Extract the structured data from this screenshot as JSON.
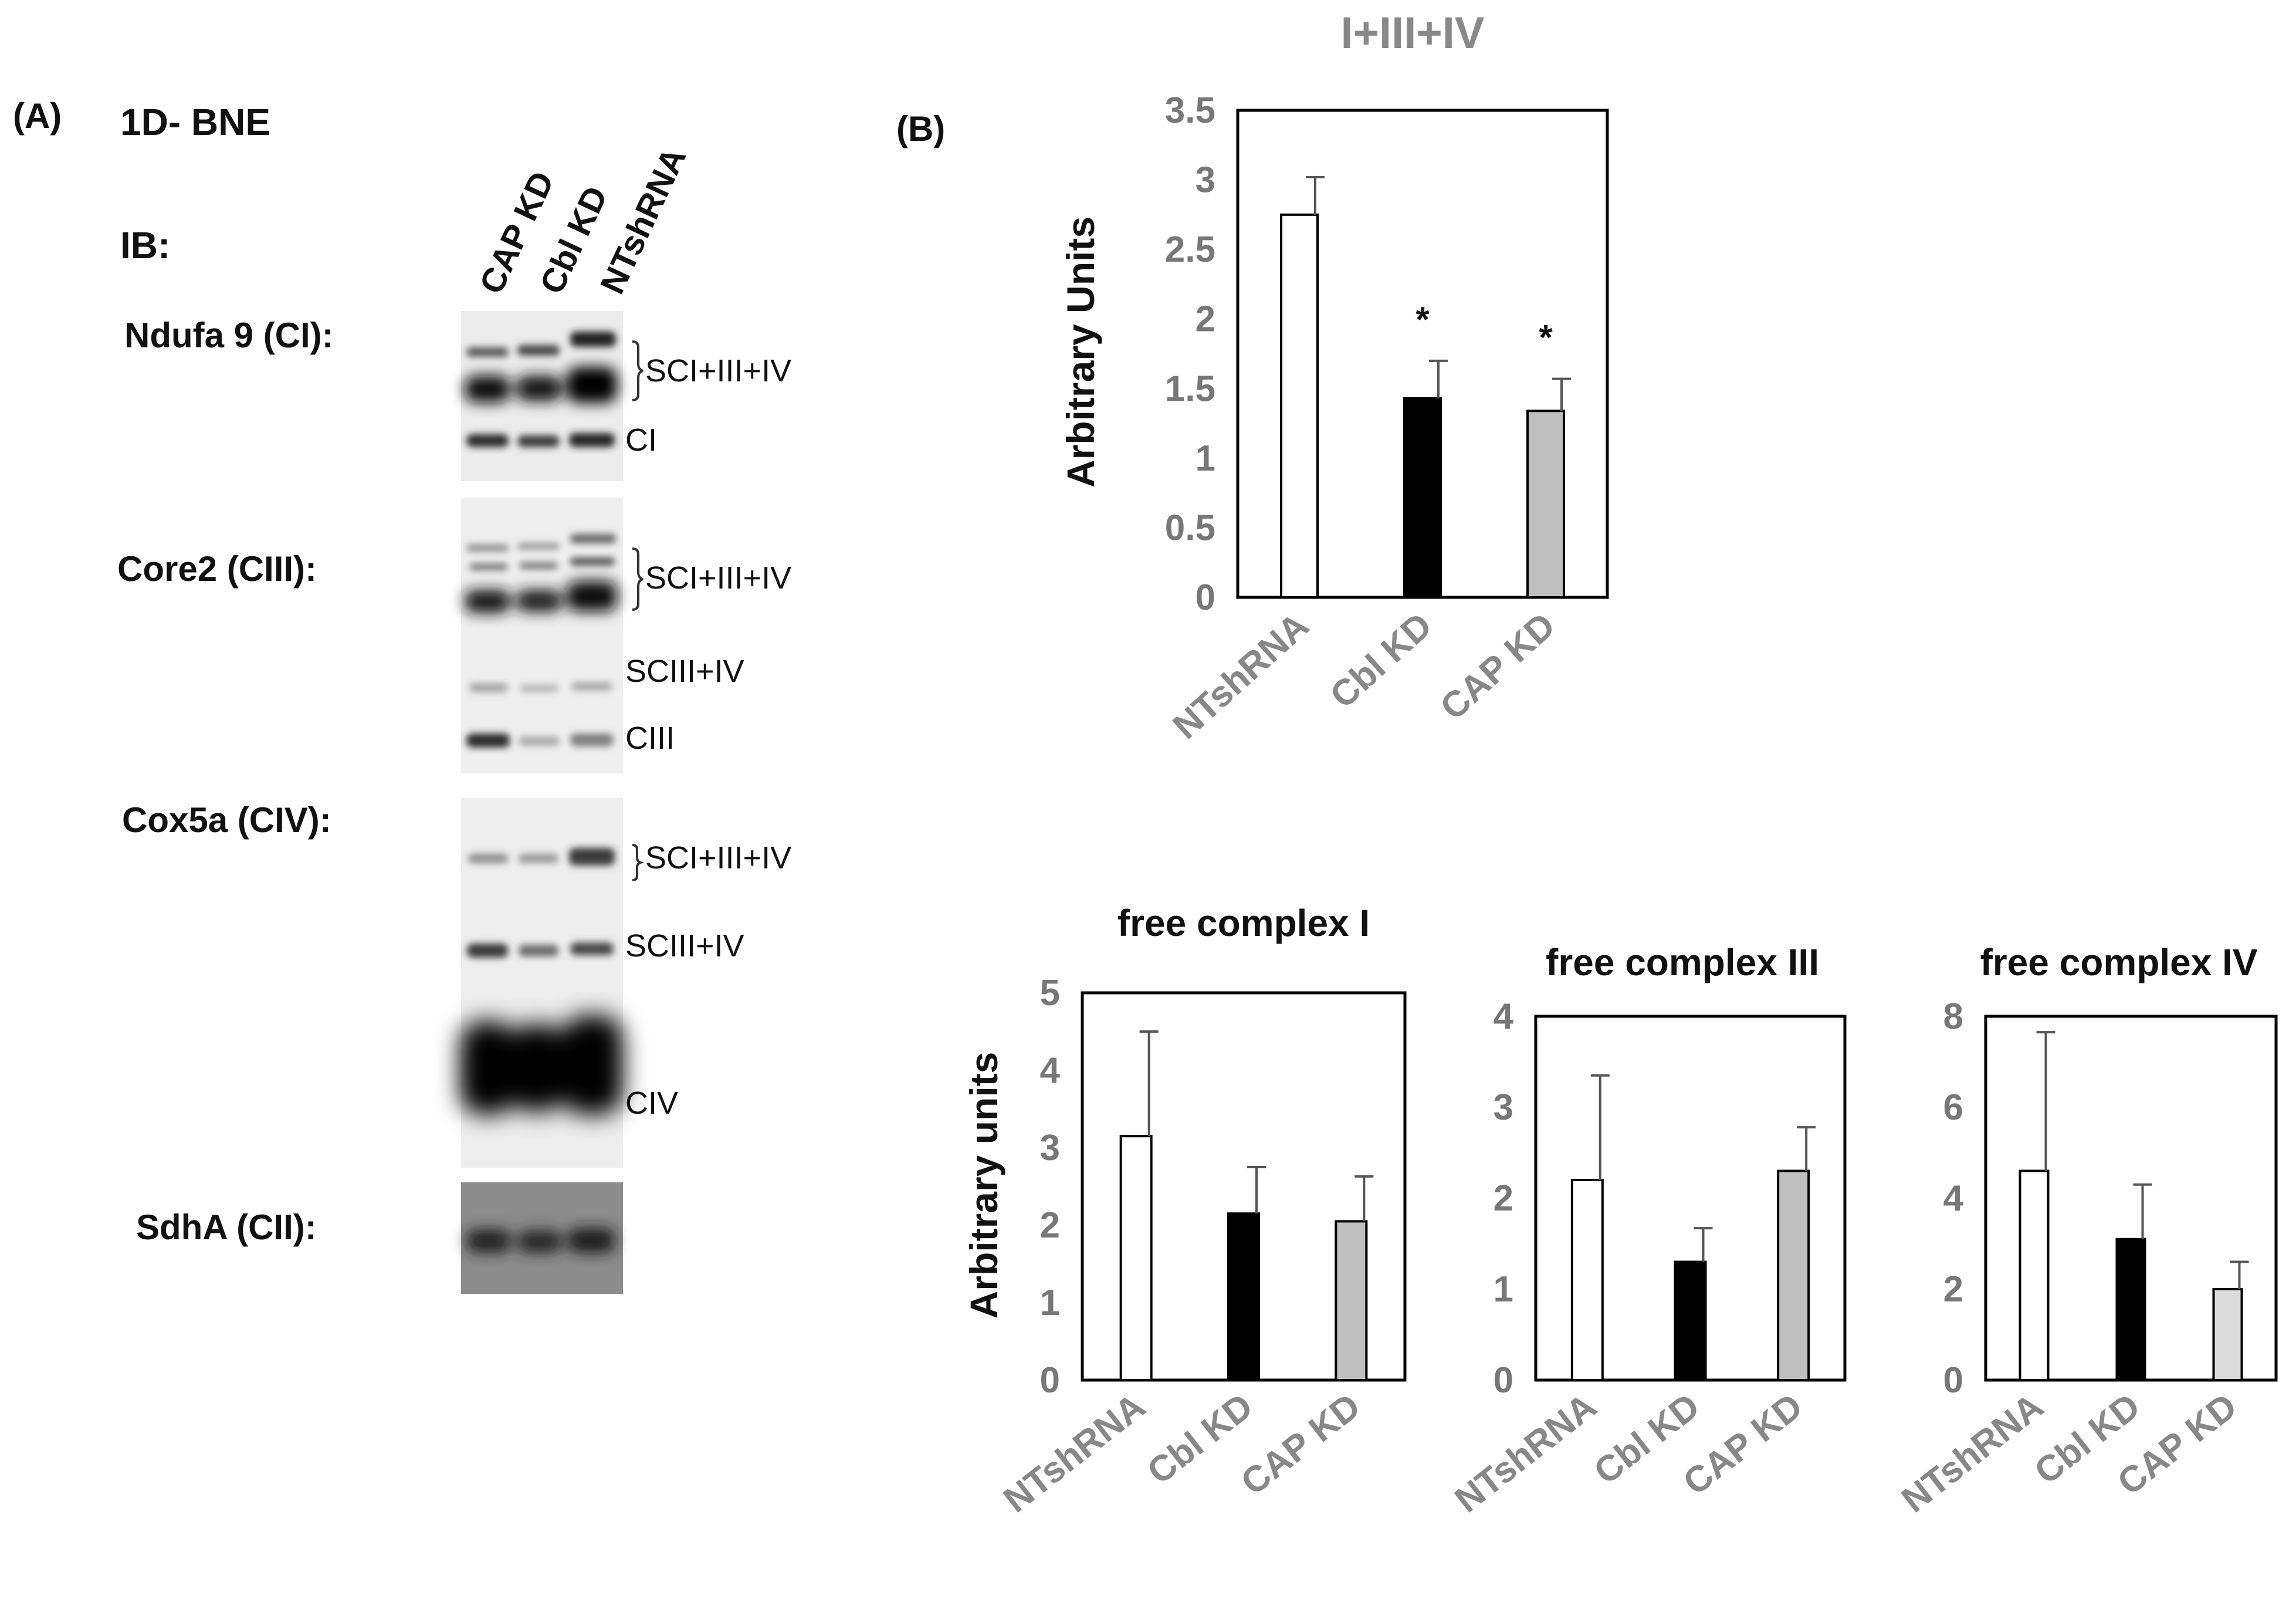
{
  "panel_a": {
    "label": "(A)",
    "method": "1D- BNE",
    "ib_label": "IB:",
    "lanes": [
      "CAP KD",
      "Cbl KD",
      "NTshRNA"
    ],
    "blots": [
      {
        "antibody": "Ndufa 9 (CI):",
        "bands": [
          "SCI+III+IV",
          "CI"
        ]
      },
      {
        "antibody": "Core2 (CIII):",
        "bands": [
          "SCI+III+IV",
          "SCIII+IV",
          "CIII"
        ]
      },
      {
        "antibody": "Cox5a (CIV):",
        "bands": [
          "SCI+III+IV",
          "SCIII+IV",
          "CIV"
        ]
      },
      {
        "antibody": "SdhA (CII):",
        "bands": []
      }
    ]
  },
  "panel_b": {
    "label": "(B)"
  },
  "colors": {
    "NTshRNA": "#ffffff",
    "Cbl KD": "#000000",
    "CAP KD": "#bfbfbf",
    "CAP KD (IV)": "#dcdcdc"
  },
  "chart_data": [
    {
      "type": "bar",
      "title": "I+III+IV",
      "ylabel": "Arbitrary Units",
      "categories": [
        "NTshRNA",
        "Cbl KD",
        "CAP KD"
      ],
      "values": [
        2.75,
        1.43,
        1.34
      ],
      "errors": [
        0.27,
        0.27,
        0.23
      ],
      "significance": [
        "",
        "*",
        "*"
      ],
      "ylim": [
        0,
        3.5
      ],
      "yticks": [
        "0",
        "0.5",
        "1",
        "1.5",
        "2",
        "2.5",
        "3",
        "3.5"
      ],
      "grid": false
    },
    {
      "type": "bar",
      "title": "free complex I",
      "ylabel": "Arbitrary units",
      "categories": [
        "NTshRNA",
        "Cbl KD",
        "CAP KD"
      ],
      "values": [
        3.15,
        2.15,
        2.05
      ],
      "errors": [
        1.35,
        0.6,
        0.58
      ],
      "ylim": [
        0,
        5
      ],
      "yticks": [
        "0",
        "1",
        "2",
        "3",
        "4",
        "5"
      ],
      "grid": false
    },
    {
      "type": "bar",
      "title": "free complex III",
      "ylabel": "",
      "categories": [
        "NTshRNA",
        "Cbl KD",
        "CAP KD"
      ],
      "values": [
        2.2,
        1.3,
        2.3
      ],
      "errors": [
        1.15,
        0.37,
        0.48
      ],
      "ylim": [
        0,
        4
      ],
      "yticks": [
        "0",
        "1",
        "2",
        "3",
        "4"
      ],
      "grid": false
    },
    {
      "type": "bar",
      "title": "free complex IV",
      "ylabel": "",
      "categories": [
        "NTshRNA",
        "Cbl KD",
        "CAP KD"
      ],
      "values": [
        4.6,
        3.1,
        2.0
      ],
      "errors": [
        3.05,
        1.2,
        0.6
      ],
      "ylim": [
        0,
        8
      ],
      "yticks": [
        "0",
        "2",
        "4",
        "6",
        "8"
      ],
      "grid": false
    }
  ]
}
